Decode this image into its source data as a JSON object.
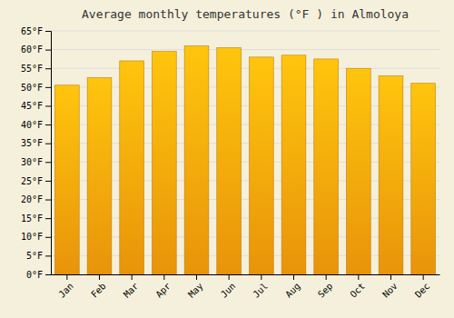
{
  "chart_data": {
    "type": "bar",
    "title": "Average monthly temperatures (°F ) in Almoloya",
    "categories": [
      "Jan",
      "Feb",
      "Mar",
      "Apr",
      "May",
      "Jun",
      "Jul",
      "Aug",
      "Sep",
      "Oct",
      "Nov",
      "Dec"
    ],
    "values": [
      50.5,
      52.5,
      57.0,
      59.5,
      61.0,
      60.5,
      58.0,
      58.5,
      57.5,
      55.0,
      53.0,
      51.0
    ],
    "color": "#E8940A",
    "ylim": [
      0,
      65
    ],
    "yticks": [
      {
        "value": 0,
        "label": "0°F"
      },
      {
        "value": 5,
        "label": "5°F"
      },
      {
        "value": 10,
        "label": "10°F"
      },
      {
        "value": 15,
        "label": "15°F"
      },
      {
        "value": 20,
        "label": "20°F"
      },
      {
        "value": 25,
        "label": "25°F"
      },
      {
        "value": 30,
        "label": "30°F"
      },
      {
        "value": 35,
        "label": "35°F"
      },
      {
        "value": 40,
        "label": "40°F"
      },
      {
        "value": 45,
        "label": "45°F"
      },
      {
        "value": 50,
        "label": "50°F"
      },
      {
        "value": 55,
        "label": "55°F"
      },
      {
        "value": 60,
        "label": "60°F"
      },
      {
        "value": 65,
        "label": "65°F"
      }
    ],
    "grid": true
  }
}
